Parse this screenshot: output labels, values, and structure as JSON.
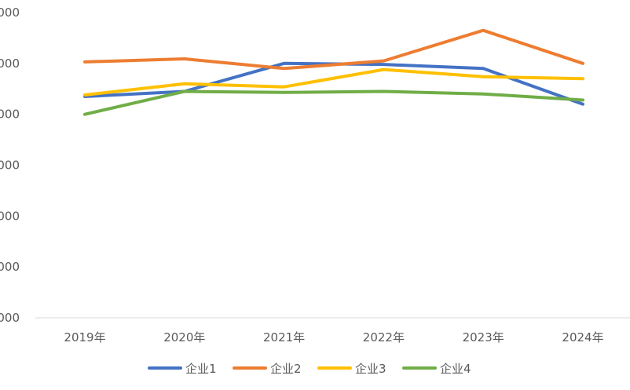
{
  "chart_data": {
    "type": "line",
    "categories": [
      "2019年",
      "2020年",
      "2021年",
      "2022年",
      "2023年",
      "2024年"
    ],
    "y_tick_labels": [
      "000",
      "000",
      "000",
      "000",
      "000",
      "000",
      "000"
    ],
    "ylim": [
      0,
      6
    ],
    "grid": false,
    "legend_position": "bottom",
    "series": [
      {
        "name": "企业1",
        "color": "#4472C4",
        "values": [
          4.35,
          4.45,
          5.0,
          4.98,
          4.9,
          4.2
        ]
      },
      {
        "name": "企业2",
        "color": "#ED7D31",
        "values": [
          5.03,
          5.09,
          4.9,
          5.05,
          5.65,
          5.0
        ]
      },
      {
        "name": "企业3",
        "color": "#FFC000",
        "values": [
          4.38,
          4.6,
          4.54,
          4.88,
          4.74,
          4.7
        ]
      },
      {
        "name": "企业4",
        "color": "#70AD47",
        "values": [
          4.0,
          4.45,
          4.43,
          4.45,
          4.4,
          4.28
        ]
      }
    ]
  }
}
